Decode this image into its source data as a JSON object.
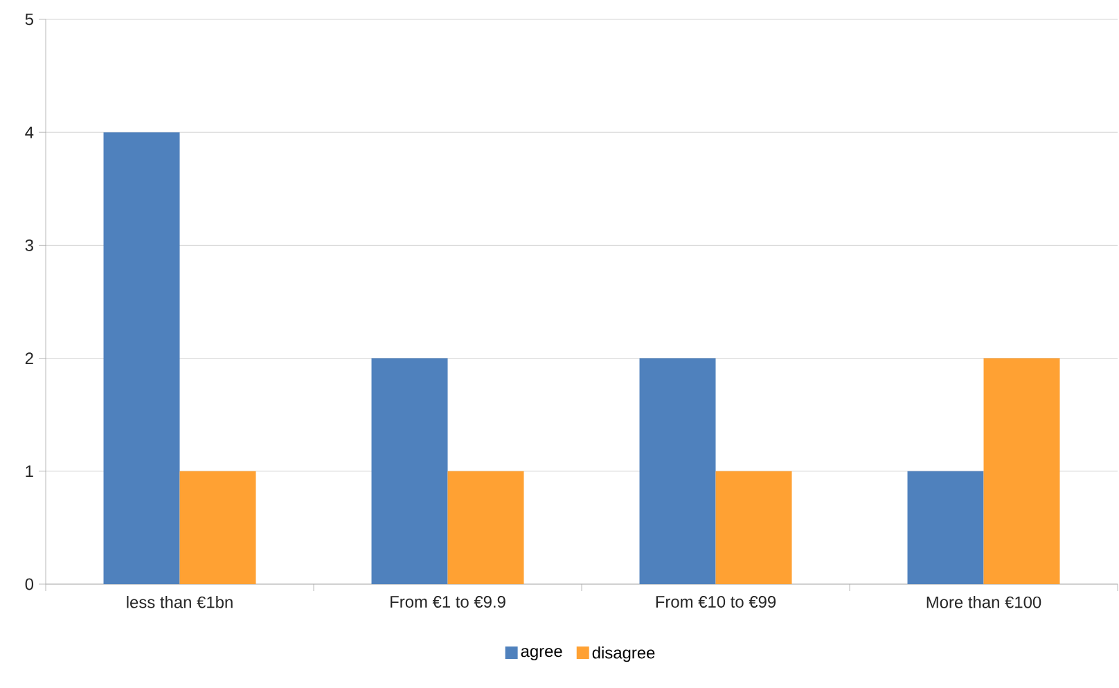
{
  "chart_data": {
    "type": "bar",
    "categories": [
      "less than €1bn",
      "From €1 to €9.9",
      "From €10 to €99",
      "More than €100"
    ],
    "series": [
      {
        "name": "agree",
        "color": "#4f81bd",
        "values": [
          4,
          2,
          2,
          1
        ]
      },
      {
        "name": "disagree",
        "color": "#ffa133",
        "values": [
          1,
          1,
          1,
          2
        ]
      }
    ],
    "ylim": [
      0,
      5
    ],
    "yticks": [
      0,
      1,
      2,
      3,
      4,
      5
    ],
    "grid": "y",
    "legend": "bottom"
  }
}
